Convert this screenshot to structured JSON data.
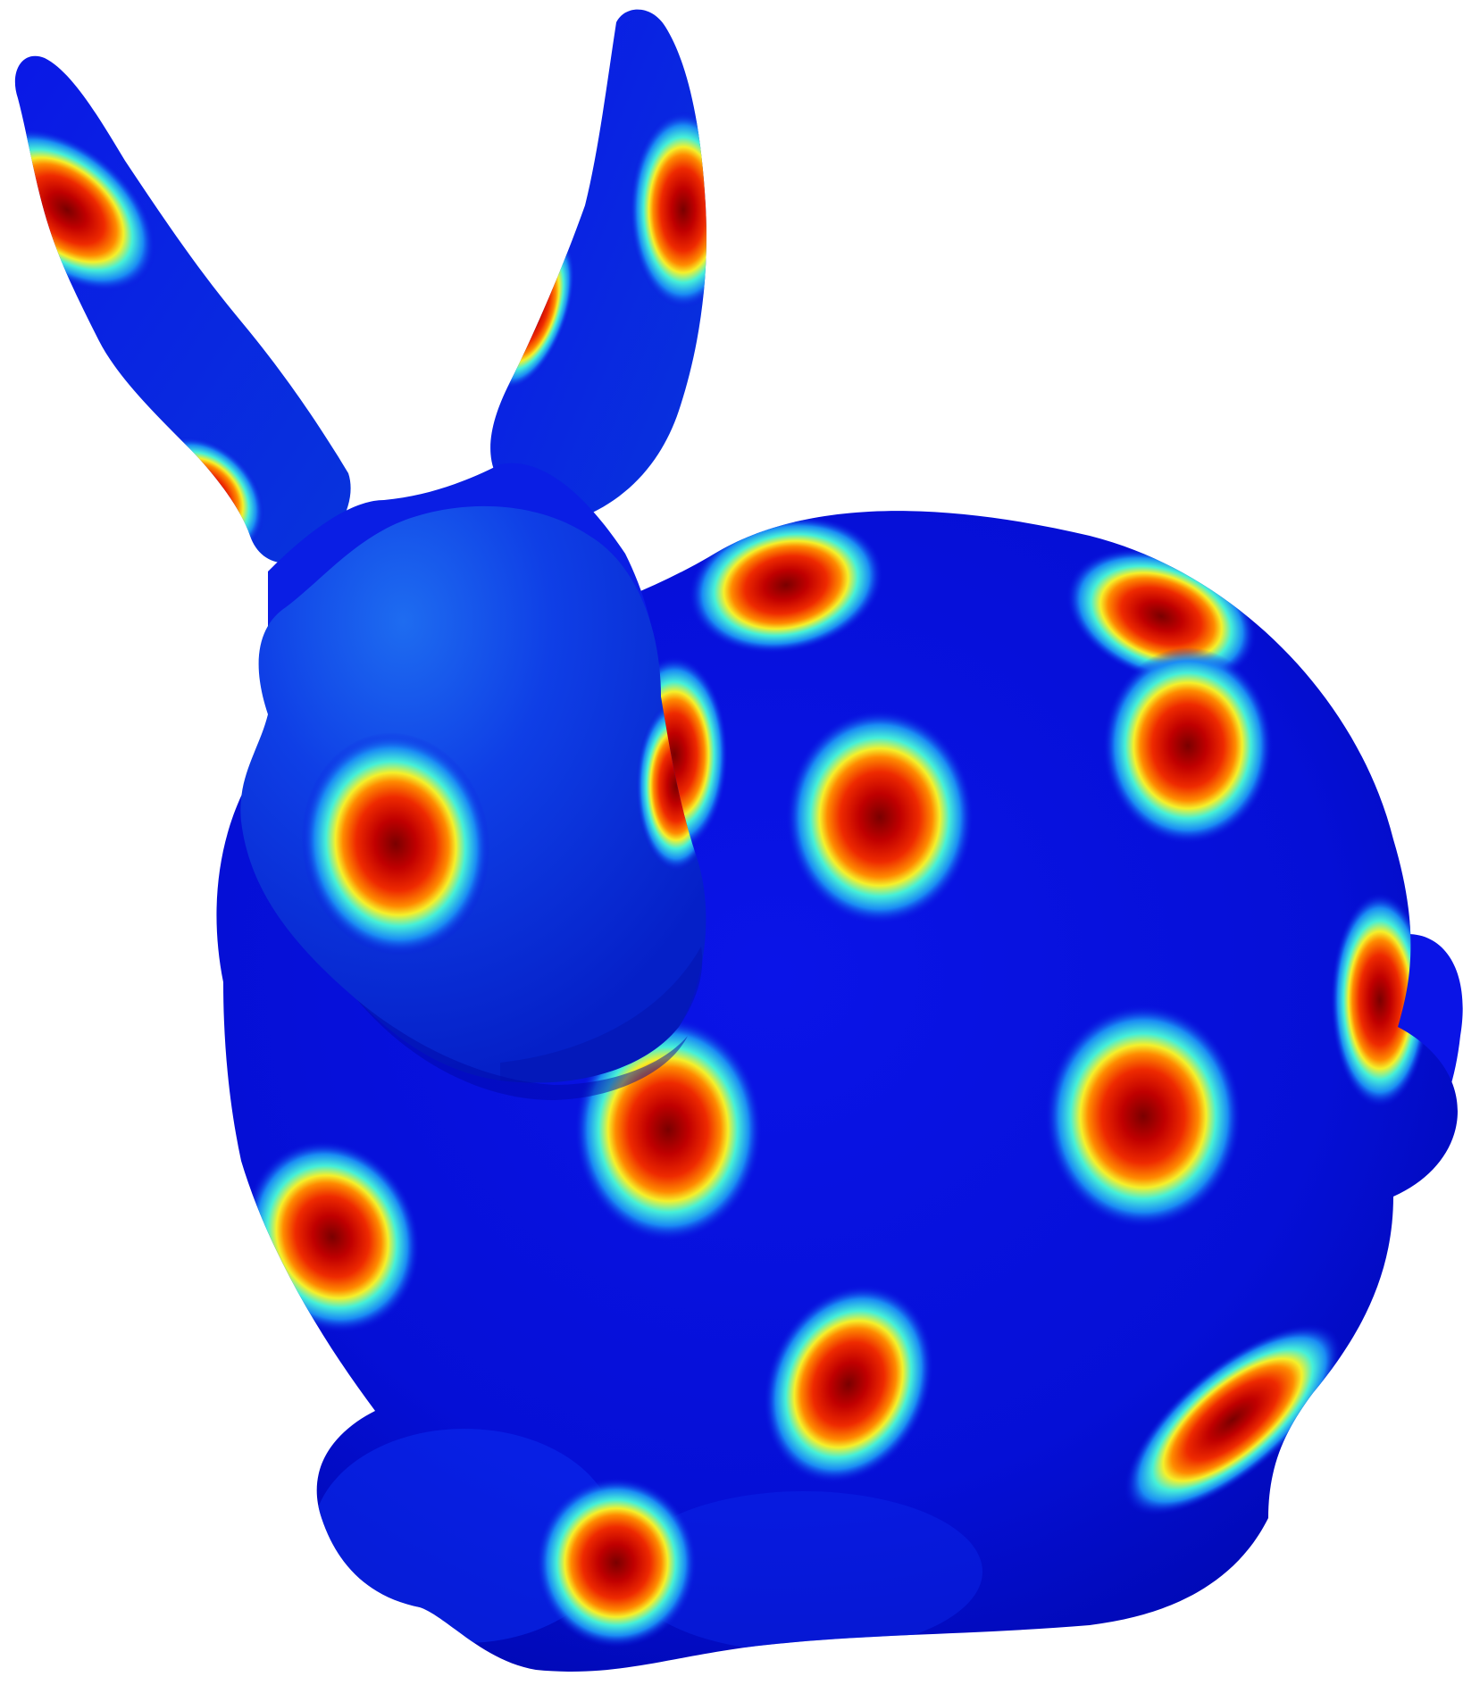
{
  "figure": {
    "subject": "stanford-bunny-mesh",
    "colormap": "jet",
    "colors": {
      "background": "#ffffff",
      "base": "#0a10e0",
      "base_dark": "#0008b8",
      "base_light": "#1a4cf0",
      "cyan": "#33e8e8",
      "yellow": "#f2ef2a",
      "red": "#e81a0a",
      "dark_red": "#8a0000"
    },
    "hotspot_count": 17
  }
}
